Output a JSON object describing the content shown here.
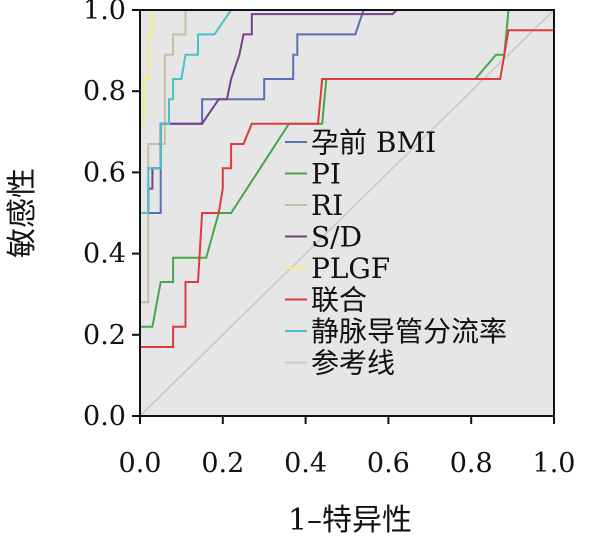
{
  "chart_data": {
    "type": "line",
    "title": "",
    "xlabel": "1–特异性",
    "ylabel": "敏感性",
    "xlim": [
      0,
      1
    ],
    "ylim": [
      0,
      1
    ],
    "x_ticks": [
      "0.0",
      "0.2",
      "0.4",
      "0.6",
      "0.8",
      "1.0"
    ],
    "y_ticks": [
      "0.0",
      "0.2",
      "0.4",
      "0.6",
      "0.8",
      "1.0"
    ],
    "grid": false,
    "legend_position": "center-right",
    "series": [
      {
        "name": "孕前 BMI",
        "color": "#5a6fb5",
        "points": [
          [
            0,
            0.5
          ],
          [
            0.05,
            0.5
          ],
          [
            0.05,
            0.72
          ],
          [
            0.15,
            0.72
          ],
          [
            0.15,
            0.78
          ],
          [
            0.3,
            0.78
          ],
          [
            0.3,
            0.83
          ],
          [
            0.37,
            0.83
          ],
          [
            0.37,
            0.89
          ],
          [
            0.38,
            0.89
          ],
          [
            0.38,
            0.94
          ],
          [
            0.52,
            0.94
          ],
          [
            0.54,
            1.0
          ],
          [
            1.0,
            1.0
          ]
        ]
      },
      {
        "name": "PI",
        "color": "#44a84a",
        "points": [
          [
            0,
            0.22
          ],
          [
            0.03,
            0.22
          ],
          [
            0.05,
            0.33
          ],
          [
            0.08,
            0.33
          ],
          [
            0.08,
            0.39
          ],
          [
            0.16,
            0.39
          ],
          [
            0.19,
            0.5
          ],
          [
            0.22,
            0.5
          ],
          [
            0.29,
            0.61
          ],
          [
            0.36,
            0.72
          ],
          [
            0.44,
            0.72
          ],
          [
            0.45,
            0.83
          ],
          [
            0.81,
            0.83
          ],
          [
            0.86,
            0.89
          ],
          [
            0.88,
            0.89
          ],
          [
            0.89,
            1.0
          ],
          [
            1.0,
            1.0
          ]
        ]
      },
      {
        "name": "RI",
        "color": "#c8bea0",
        "points": [
          [
            0,
            0.28
          ],
          [
            0.02,
            0.28
          ],
          [
            0.02,
            0.67
          ],
          [
            0.06,
            0.67
          ],
          [
            0.06,
            0.89
          ],
          [
            0.08,
            0.89
          ],
          [
            0.08,
            0.94
          ],
          [
            0.11,
            0.94
          ],
          [
            0.11,
            1.0
          ],
          [
            1.0,
            1.0
          ]
        ]
      },
      {
        "name": "S/D",
        "color": "#7a3f8c",
        "points": [
          [
            0,
            0.5
          ],
          [
            0.02,
            0.5
          ],
          [
            0.02,
            0.56
          ],
          [
            0.03,
            0.56
          ],
          [
            0.03,
            0.61
          ],
          [
            0.05,
            0.61
          ],
          [
            0.05,
            0.72
          ],
          [
            0.15,
            0.72
          ],
          [
            0.19,
            0.78
          ],
          [
            0.21,
            0.78
          ],
          [
            0.22,
            0.83
          ],
          [
            0.24,
            0.89
          ],
          [
            0.25,
            0.94
          ],
          [
            0.27,
            0.94
          ],
          [
            0.27,
            0.99
          ],
          [
            0.61,
            0.99
          ],
          [
            0.62,
            1.0
          ],
          [
            1.0,
            1.0
          ]
        ]
      },
      {
        "name": "PLGF",
        "color": "#f2ee80",
        "points": [
          [
            0,
            0.72
          ],
          [
            0.01,
            0.72
          ],
          [
            0.01,
            0.83
          ],
          [
            0.02,
            0.83
          ],
          [
            0.02,
            0.94
          ],
          [
            0.03,
            0.94
          ],
          [
            0.03,
            1.0
          ],
          [
            1.0,
            1.0
          ]
        ]
      },
      {
        "name": "联合",
        "color": "#e03a3a",
        "points": [
          [
            0,
            0.17
          ],
          [
            0.08,
            0.17
          ],
          [
            0.08,
            0.22
          ],
          [
            0.11,
            0.22
          ],
          [
            0.11,
            0.33
          ],
          [
            0.14,
            0.33
          ],
          [
            0.15,
            0.5
          ],
          [
            0.19,
            0.5
          ],
          [
            0.2,
            0.56
          ],
          [
            0.2,
            0.61
          ],
          [
            0.22,
            0.61
          ],
          [
            0.22,
            0.67
          ],
          [
            0.25,
            0.67
          ],
          [
            0.27,
            0.72
          ],
          [
            0.43,
            0.72
          ],
          [
            0.44,
            0.83
          ],
          [
            0.87,
            0.83
          ],
          [
            0.88,
            0.89
          ],
          [
            0.89,
            0.95
          ],
          [
            1.0,
            0.95
          ]
        ]
      },
      {
        "name": "静脉导管分流率",
        "color": "#49c1c8",
        "points": [
          [
            0,
            0.5
          ],
          [
            0.02,
            0.5
          ],
          [
            0.02,
            0.61
          ],
          [
            0.05,
            0.61
          ],
          [
            0.05,
            0.72
          ],
          [
            0.07,
            0.72
          ],
          [
            0.07,
            0.78
          ],
          [
            0.08,
            0.78
          ],
          [
            0.08,
            0.83
          ],
          [
            0.1,
            0.83
          ],
          [
            0.11,
            0.89
          ],
          [
            0.14,
            0.89
          ],
          [
            0.14,
            0.94
          ],
          [
            0.18,
            0.94
          ],
          [
            0.2,
            0.97
          ],
          [
            0.22,
            1.0
          ],
          [
            1.0,
            1.0
          ]
        ]
      },
      {
        "name": "参考线",
        "color": "#c8c8c8",
        "reference": true,
        "points": [
          [
            0,
            0
          ],
          [
            1,
            1
          ]
        ]
      }
    ]
  }
}
